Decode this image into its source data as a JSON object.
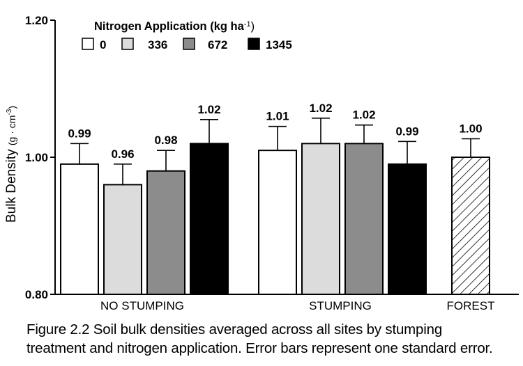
{
  "chart_data": {
    "type": "bar",
    "ylabel": "Bulk Density",
    "ylabel_units": "(g · cm",
    "ylabel_units_exp": "-3",
    "ylabel_units_close": ")",
    "ylim": [
      0.8,
      1.2
    ],
    "yticks": [
      {
        "value": 0.8,
        "label": "0.80"
      },
      {
        "value": 1.0,
        "label": "1.00"
      },
      {
        "value": 1.2,
        "label": "1.20"
      }
    ],
    "legend": {
      "title_main": "Nitrogen Application  (kg  ha",
      "title_exp": "-1",
      "title_close": ")",
      "placement": "top-left",
      "entries": [
        {
          "label": "0",
          "color": "#ffffff"
        },
        {
          "label": "336",
          "color": "#dcdcdc"
        },
        {
          "label": "672",
          "color": "#8c8c8c"
        },
        {
          "label": "1345",
          "color": "#000000"
        }
      ]
    },
    "groups": [
      {
        "name": "NO STUMPING",
        "bars": [
          {
            "nitrogen": "0",
            "value": 0.99,
            "error": 0.03,
            "label": "0.99",
            "color": "#ffffff"
          },
          {
            "nitrogen": "336",
            "value": 0.96,
            "error": 0.03,
            "label": "0.96",
            "color": "#dcdcdc"
          },
          {
            "nitrogen": "672",
            "value": 0.98,
            "error": 0.03,
            "label": "0.98",
            "color": "#8c8c8c"
          },
          {
            "nitrogen": "1345",
            "value": 1.02,
            "error": 0.035,
            "label": "1.02",
            "color": "#000000"
          }
        ]
      },
      {
        "name": "STUMPING",
        "bars": [
          {
            "nitrogen": "0",
            "value": 1.01,
            "error": 0.035,
            "label": "1.01",
            "color": "#ffffff"
          },
          {
            "nitrogen": "336",
            "value": 1.02,
            "error": 0.037,
            "label": "1.02",
            "color": "#dcdcdc"
          },
          {
            "nitrogen": "672",
            "value": 1.02,
            "error": 0.027,
            "label": "1.02",
            "color": "#8c8c8c"
          },
          {
            "nitrogen": "1345",
            "value": 0.99,
            "error": 0.033,
            "label": "0.99",
            "color": "#000000"
          }
        ]
      },
      {
        "name": "FOREST",
        "bars": [
          {
            "nitrogen": "forest",
            "value": 1.0,
            "error": 0.027,
            "label": "1.00",
            "color": "hatch"
          }
        ]
      }
    ]
  },
  "caption": {
    "line1": "Figure 2.2   Soil bulk densities averaged across all sites by stumping",
    "line2": "treatment and nitrogen application.  Error bars represent one standard error."
  }
}
